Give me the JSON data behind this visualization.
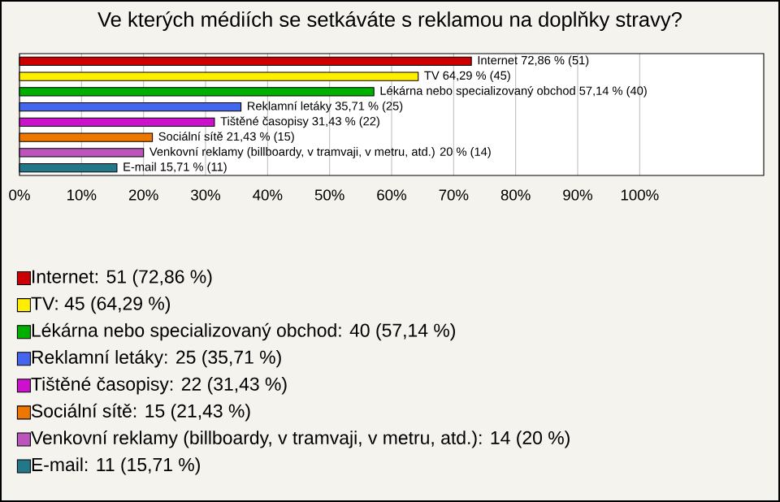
{
  "chart_data": {
    "type": "bar",
    "orientation": "horizontal",
    "title": "Ve kterých médiích se setkáváte s reklamou na doplňky stravy?",
    "categories": [
      null,
      null,
      null,
      null,
      null,
      null,
      null,
      null
    ],
    "series": [
      {
        "name": "Internet: 51 (72,86 %)",
        "color": "#cc0000",
        "values": [
          72.86,
          null,
          null,
          null,
          null,
          null,
          null,
          null
        ],
        "value_labels": [
          "Internet 72,86 % (51)",
          null,
          null,
          null,
          null,
          null,
          null,
          null
        ]
      },
      {
        "name": "TV: 45 (64,29 %)",
        "color": "#ffee00",
        "values": [
          null,
          64.29,
          null,
          null,
          null,
          null,
          null,
          null
        ],
        "value_labels": [
          null,
          "TV 64,29 % (45)",
          null,
          null,
          null,
          null,
          null,
          null
        ]
      },
      {
        "name": "Lékárna nebo specializovaný obchod: 40 (57,14 %)",
        "color": "#00b000",
        "values": [
          null,
          null,
          57.14,
          null,
          null,
          null,
          null,
          null
        ],
        "value_labels": [
          null,
          null,
          "Lékárna nebo specializovaný obchod 57,14 % (40)",
          null,
          null,
          null,
          null,
          null
        ]
      },
      {
        "name": "Reklamní letáky: 25 (35,71 %)",
        "color": "#4466ee",
        "values": [
          null,
          null,
          null,
          35.71,
          null,
          null,
          null,
          null
        ],
        "value_labels": [
          null,
          null,
          null,
          "Reklamní letáky 35,71 % (25)",
          null,
          null,
          null,
          null
        ]
      },
      {
        "name": "Tištěné časopisy: 22 (31,43 %)",
        "color": "#cc11cc",
        "values": [
          null,
          null,
          null,
          null,
          31.43,
          null,
          null,
          null
        ],
        "value_labels": [
          null,
          null,
          null,
          null,
          "Tištěné časopisy 31,43 % (22)",
          null,
          null,
          null
        ]
      },
      {
        "name": "Sociální sítě: 15 (21,43 %)",
        "color": "#ee7700",
        "values": [
          null,
          null,
          null,
          null,
          null,
          21.43,
          null,
          null
        ],
        "value_labels": [
          null,
          null,
          null,
          null,
          null,
          "Sociální sítě 21,43 % (15)",
          null,
          null
        ]
      },
      {
        "name": "Venkovní reklamy (billboardy, v tramvaji, v metru, atd.): 14 (20 %)",
        "color": "#bb55bb",
        "values": [
          null,
          null,
          null,
          null,
          null,
          null,
          20,
          null
        ],
        "value_labels": [
          null,
          null,
          null,
          null,
          null,
          null,
          "Venkovní reklamy (billboardy, v tramvaji, v metru, atd.) 20 % (14)",
          null
        ]
      },
      {
        "name": "E-mail: 11 (15,71 %)",
        "color": "#227788",
        "values": [
          null,
          null,
          null,
          null,
          null,
          null,
          null,
          15.71
        ],
        "value_labels": [
          null,
          null,
          null,
          null,
          null,
          null,
          null,
          "E-mail 15,71 % (11)"
        ]
      }
    ],
    "xlim": [
      0,
      120
    ],
    "xticks": [
      {
        "value": 0,
        "label": "0%"
      },
      {
        "value": 10,
        "label": "10%"
      },
      {
        "value": 20,
        "label": "20%"
      },
      {
        "value": 30,
        "label": "30%"
      },
      {
        "value": 40,
        "label": "40%"
      },
      {
        "value": 50,
        "label": "50%"
      },
      {
        "value": 60,
        "label": "60%"
      },
      {
        "value": 70,
        "label": "70%"
      },
      {
        "value": 80,
        "label": "80%"
      },
      {
        "value": 90,
        "label": "90%"
      },
      {
        "value": 100,
        "label": "100%"
      }
    ],
    "grid": "x",
    "tick_labels": "x",
    "legend": "bottom"
  }
}
